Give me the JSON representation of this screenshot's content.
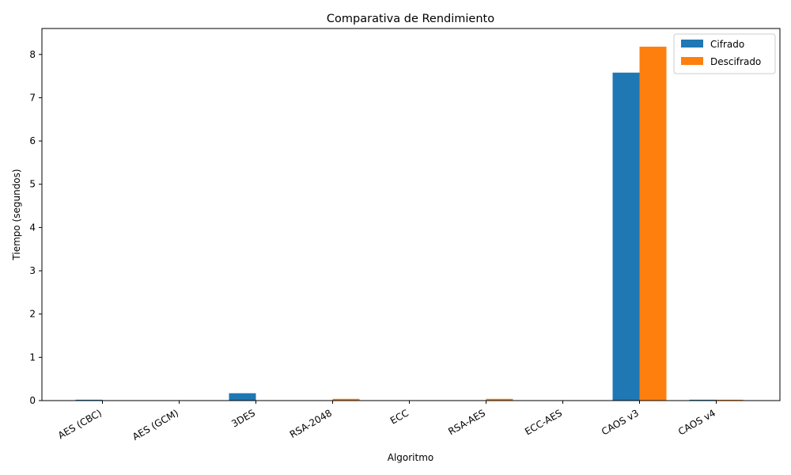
{
  "chart_data": {
    "type": "bar",
    "title": "Comparativa de Rendimiento",
    "xlabel": "Algoritmo",
    "ylabel": "Tiempo (segundos)",
    "categories": [
      "AES (CBC)",
      "AES (GCM)",
      "3DES",
      "RSA-2048",
      "ECC",
      "RSA-AES",
      "ECC-AES",
      "CAOS v3",
      "CAOS v4"
    ],
    "series": [
      {
        "name": "Cifrado",
        "color": "#1f77b4",
        "values": [
          0.02,
          0.001,
          0.17,
          0.002,
          0.002,
          0.005,
          0.003,
          7.58,
          0.02
        ]
      },
      {
        "name": "Descifrado",
        "color": "#ff7f0e",
        "values": [
          0.002,
          0.001,
          0.005,
          0.04,
          0.002,
          0.04,
          0.003,
          8.18,
          0.02
        ]
      }
    ],
    "ylim": [
      0,
      8.6
    ],
    "yticks": [
      0,
      1,
      2,
      3,
      4,
      5,
      6,
      7,
      8
    ],
    "grid": false,
    "legend_position": "top-right"
  }
}
